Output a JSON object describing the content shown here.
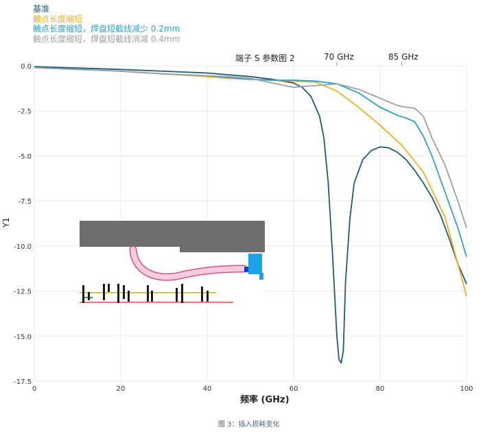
{
  "chart_data": {
    "type": "line",
    "title": "端子 S 参数图 2",
    "xlabel": "频率 (GHz)",
    "ylabel": "Y1",
    "xlim": [
      0,
      100
    ],
    "ylim": [
      -17.5,
      0
    ],
    "xticks": [
      "0",
      "20",
      "40",
      "60",
      "80",
      "100"
    ],
    "yticks": [
      "0.0",
      "-2.5",
      "-5.0",
      "-7.5",
      "-10.0",
      "-12.5",
      "-15.0",
      "-17.5"
    ],
    "grid": true,
    "legend_position": "top-left",
    "markers": [
      {
        "label": "70 GHz",
        "x": 70
      },
      {
        "label": "85 GHz",
        "x": 85
      }
    ],
    "series": [
      {
        "name": "基准",
        "color": "#1c5a78",
        "x": [
          0,
          10,
          20,
          30,
          40,
          50,
          55,
          60,
          62,
          64,
          66,
          67,
          68,
          69,
          70,
          70.5,
          71,
          71.5,
          72,
          73,
          74,
          76,
          78,
          80,
          82,
          84,
          86,
          88,
          90,
          92,
          94,
          96,
          98,
          100
        ],
        "y": [
          -0.05,
          -0.12,
          -0.2,
          -0.3,
          -0.4,
          -0.6,
          -0.75,
          -0.95,
          -1.2,
          -1.7,
          -2.8,
          -4.0,
          -6.5,
          -10.5,
          -15.0,
          -16.3,
          -16.5,
          -15.8,
          -12.0,
          -8.5,
          -6.5,
          -5.2,
          -4.7,
          -4.5,
          -4.55,
          -4.8,
          -5.2,
          -5.8,
          -6.5,
          -7.3,
          -8.3,
          -9.6,
          -11.0,
          -12.1
        ]
      },
      {
        "name": "触点长度缩短",
        "color": "#f0b020",
        "x": [
          0,
          10,
          20,
          30,
          40,
          45,
          50,
          55,
          60,
          65,
          70,
          75,
          80,
          85,
          90,
          95,
          98,
          100
        ],
        "y": [
          -0.1,
          -0.2,
          -0.3,
          -0.45,
          -0.6,
          -0.7,
          -0.75,
          -0.8,
          -0.85,
          -0.9,
          -1.4,
          -2.3,
          -3.3,
          -4.4,
          -5.9,
          -8.4,
          -11.0,
          -12.8
        ]
      },
      {
        "name": "触点长度缩短，焊盘短截线减少 0.2mm",
        "color": "#2a9fd0",
        "x": [
          0,
          10,
          20,
          30,
          40,
          45,
          50,
          55,
          60,
          65,
          70,
          75,
          80,
          84,
          86,
          88,
          90,
          92,
          95,
          98,
          100
        ],
        "y": [
          -0.1,
          -0.2,
          -0.3,
          -0.45,
          -0.55,
          -0.65,
          -0.75,
          -0.8,
          -0.8,
          -0.85,
          -1.0,
          -1.5,
          -2.3,
          -2.75,
          -2.9,
          -3.1,
          -3.9,
          -5.0,
          -7.0,
          -9.0,
          -10.6
        ]
      },
      {
        "name": "触点长度缩短，焊盘短截线消减 0.4mm",
        "color": "#9aa0a6",
        "x": [
          0,
          10,
          20,
          30,
          40,
          45,
          50,
          55,
          60,
          62,
          65,
          70,
          75,
          80,
          84,
          86,
          88,
          90,
          92,
          95,
          98,
          100
        ],
        "y": [
          -0.1,
          -0.2,
          -0.3,
          -0.45,
          -0.55,
          -0.6,
          -0.7,
          -0.95,
          -1.2,
          -1.15,
          -1.1,
          -1.0,
          -1.3,
          -1.8,
          -2.2,
          -2.3,
          -2.35,
          -2.8,
          -4.0,
          -5.5,
          -7.5,
          -9.0
        ]
      }
    ]
  },
  "caption": "图 3：插入损耗变化",
  "inset": {
    "description_icon": "pcb-via-cross-section-icon"
  }
}
